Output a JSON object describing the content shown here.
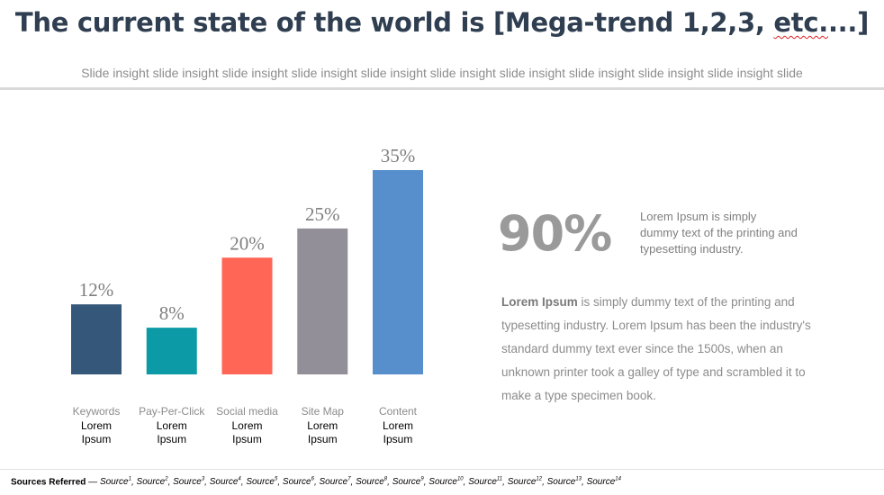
{
  "header": {
    "title_main": "The current state of the world is [Mega-trend 1,2,3, ",
    "title_squiggle": "etc.",
    "title_end": "...]",
    "subtitle": "Slide insight slide insight slide insight slide insight slide insight slide insight slide insight slide insight slide insight slide insight slide"
  },
  "chart_data": {
    "type": "bar",
    "categories": [
      "Keywords",
      "Pay-Per-Click",
      "Social media",
      "Site Map",
      "Content"
    ],
    "category_sublabels": [
      "Lorem Ipsum",
      "Lorem Ipsum",
      "Lorem Ipsum",
      "Lorem Ipsum",
      "Lorem Ipsum"
    ],
    "values": [
      12,
      8,
      20,
      25,
      35
    ],
    "value_labels": [
      "12%",
      "8%",
      "20%",
      "25%",
      "35%"
    ],
    "colors": [
      "#35577a",
      "#0b9aa6",
      "#ff6655",
      "#938f99",
      "#568fcb"
    ],
    "title": "",
    "xlabel": "",
    "ylabel": "",
    "ylim": [
      0,
      35
    ],
    "grid": false,
    "legend": "none"
  },
  "stat": {
    "value": "90%",
    "description": "Lorem Ipsum is simply dummy text of the printing and typesetting industry."
  },
  "paragraph": {
    "lead": "Lorem Ipsum",
    "body": " is simply dummy text of the printing and typesetting industry. Lorem Ipsum has been the industry's standard dummy text ever since the 1500s, when an unknown printer took a galley of type and scrambled it to make a type specimen book."
  },
  "footer": {
    "label": "Sources Referred",
    "dash": " — ",
    "sources": [
      {
        "name": "Source",
        "sup": "1"
      },
      {
        "name": "Source",
        "sup": "2"
      },
      {
        "name": "Source",
        "sup": "3"
      },
      {
        "name": "Source",
        "sup": "4"
      },
      {
        "name": "Source",
        "sup": "5"
      },
      {
        "name": "Source",
        "sup": "6"
      },
      {
        "name": "Source",
        "sup": "7"
      },
      {
        "name": "Source",
        "sup": "8"
      },
      {
        "name": "Source",
        "sup": "9"
      },
      {
        "name": "Source",
        "sup": "10"
      },
      {
        "name": "Source",
        "sup": "11"
      },
      {
        "name": "Source",
        "sup": "12"
      },
      {
        "name": "Source",
        "sup": "13"
      },
      {
        "name": "Source",
        "sup": "14"
      }
    ]
  }
}
